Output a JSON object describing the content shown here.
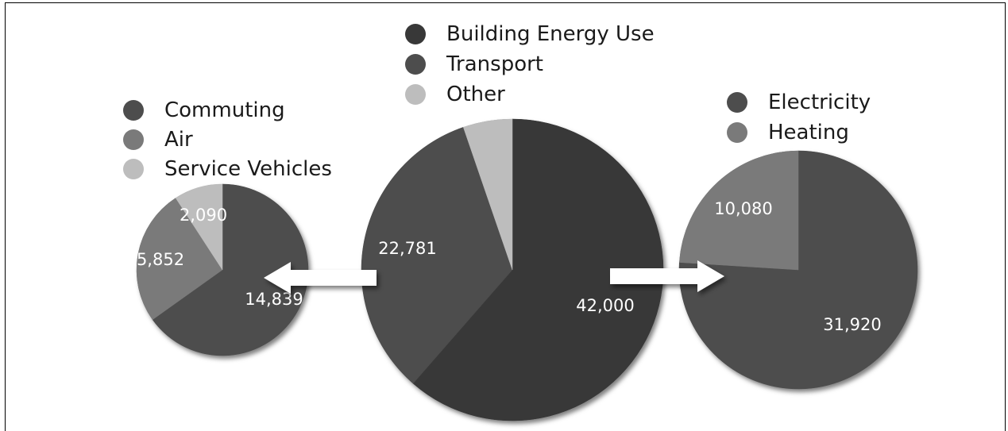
{
  "colors": {
    "dark": "#383838",
    "medium": "#4d4d4d",
    "gray": "#7a7a7a",
    "light": "#bdbdbd",
    "arrow": "#ffffff"
  },
  "chart_data": [
    {
      "type": "pie",
      "id": "transport-breakdown",
      "legend_placement": "top",
      "slices": [
        {
          "label": "Commuting",
          "value": 14839,
          "display": "14,839",
          "color": "#4d4d4d"
        },
        {
          "label": "Air",
          "value": 5852,
          "display": "5,852",
          "color": "#7a7a7a"
        },
        {
          "label": "Service Vehicles",
          "value": 2090,
          "display": "2,090",
          "color": "#bdbdbd"
        }
      ]
    },
    {
      "type": "pie",
      "id": "total",
      "legend_placement": "top",
      "slices": [
        {
          "label": "Building Energy Use",
          "value": 42000,
          "display": "42,000",
          "color": "#383838"
        },
        {
          "label": "Transport",
          "value": 22781,
          "display": "22,781",
          "color": "#4d4d4d"
        },
        {
          "label": "Other",
          "value": 3600,
          "display": "",
          "color": "#bdbdbd"
        }
      ]
    },
    {
      "type": "pie",
      "id": "building-energy-breakdown",
      "legend_placement": "top",
      "slices": [
        {
          "label": "Electricity",
          "value": 31920,
          "display": "31,920",
          "color": "#4d4d4d"
        },
        {
          "label": "Heating",
          "value": 10080,
          "display": "10,080",
          "color": "#7a7a7a"
        }
      ]
    }
  ]
}
